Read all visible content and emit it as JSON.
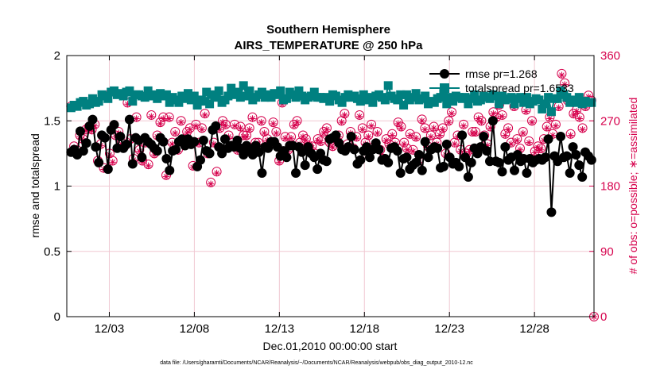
{
  "colors": {
    "rmse": "#000000",
    "spread": "#008080",
    "obs": "#d6004c",
    "grid": "#f0c8d2",
    "axis": "#000000"
  },
  "chart_data": {
    "type": "line",
    "title_line1": "Southern Hemisphere",
    "title_line2": "AIRS_TEMPERATURE @ 250 hPa",
    "xlabel": "Dec.01,2010 00:00:00 start",
    "ylabel_left": "rmse and totalspread",
    "ylabel_right": "# of obs: o=possible; ∗=assimilated",
    "xlim": [
      0,
      31
    ],
    "ylim_left": [
      0,
      2
    ],
    "ylim_right": [
      0,
      360
    ],
    "x_ticks": [
      {
        "value": 2.5,
        "label": "12/03"
      },
      {
        "value": 7.5,
        "label": "12/08"
      },
      {
        "value": 12.5,
        "label": "12/13"
      },
      {
        "value": 17.5,
        "label": "12/18"
      },
      {
        "value": 22.5,
        "label": "12/23"
      },
      {
        "value": 27.5,
        "label": "12/28"
      }
    ],
    "y_left_ticks": [
      {
        "value": 0,
        "label": "0"
      },
      {
        "value": 0.5,
        "label": "0.5"
      },
      {
        "value": 1,
        "label": "1"
      },
      {
        "value": 1.5,
        "label": "1.5"
      },
      {
        "value": 2,
        "label": "2"
      }
    ],
    "y_right_ticks": [
      {
        "value": 0,
        "label": "0"
      },
      {
        "value": 90,
        "label": "90"
      },
      {
        "value": 180,
        "label": "180"
      },
      {
        "value": 270,
        "label": "270"
      },
      {
        "value": 360,
        "label": "360"
      }
    ],
    "legend": [
      {
        "name": "rmse pr=1.268",
        "series": "rmse"
      },
      {
        "name": "totalspread pr=1.6533",
        "series": "spread"
      }
    ],
    "legend_position": "top-right",
    "series": [
      {
        "name": "rmse",
        "axis": "left",
        "marker": "circle",
        "values": [
          1.26,
          1.28,
          1.24,
          1.42,
          1.27,
          1.33,
          1.46,
          1.51,
          1.3,
          1.18,
          1.39,
          1.37,
          1.13,
          1.43,
          1.47,
          1.29,
          1.38,
          1.29,
          1.32,
          1.51,
          1.17,
          1.37,
          1.35,
          1.22,
          1.37,
          1.34,
          1.32,
          1.29,
          1.27,
          1.37,
          1.34,
          1.21,
          1.12,
          1.27,
          1.28,
          1.34,
          1.36,
          1.31,
          1.36,
          1.32,
          1.34,
          1.15,
          1.2,
          1.35,
          1.27,
          1.25,
          1.43,
          1.46,
          1.3,
          1.25,
          1.36,
          1.29,
          1.31,
          1.3,
          1.35,
          1.29,
          1.24,
          1.31,
          1.28,
          1.24,
          1.31,
          1.26,
          1.1,
          1.3,
          1.29,
          1.34,
          1.34,
          1.3,
          1.23,
          1.27,
          1.22,
          1.31,
          1.31,
          1.1,
          1.3,
          1.26,
          1.16,
          1.3,
          1.25,
          1.22,
          1.13,
          1.25,
          1.2,
          1.19,
          1.36,
          1.37,
          1.39,
          1.33,
          1.28,
          1.27,
          1.3,
          1.38,
          1.28,
          1.17,
          1.2,
          1.27,
          1.3,
          1.22,
          1.28,
          1.33,
          1.28,
          1.2,
          1.21,
          1.18,
          1.29,
          1.3,
          1.27,
          1.1,
          1.21,
          1.22,
          1.13,
          1.16,
          1.18,
          1.24,
          1.12,
          1.34,
          1.22,
          1.28,
          1.3,
          1.29,
          1.14,
          1.15,
          1.32,
          1.22,
          1.17,
          1.18,
          1.15,
          1.39,
          1.22,
          1.07,
          1.18,
          1.29,
          1.25,
          1.3,
          1.38,
          1.27,
          1.19,
          1.5,
          1.19,
          1.18,
          1.11,
          1.3,
          1.2,
          1.22,
          1.12,
          1.24,
          1.19,
          1.21,
          1.1,
          1.21,
          1.18,
          1.2,
          1.21,
          1.2,
          1.22,
          1.36,
          0.8,
          1.23,
          1.19,
          1.38,
          1.22,
          1.23,
          1.1,
          1.3,
          1.24,
          1.16,
          1.07,
          1.26,
          1.23,
          1.2
        ]
      },
      {
        "name": "totalspread",
        "axis": "left",
        "marker": "square",
        "values": [
          1.6,
          1.62,
          1.61,
          1.64,
          1.65,
          1.62,
          1.63,
          1.67,
          1.64,
          1.65,
          1.7,
          1.69,
          1.67,
          1.72,
          1.73,
          1.7,
          1.71,
          1.69,
          1.72,
          1.73,
          1.65,
          1.7,
          1.7,
          1.69,
          1.68,
          1.73,
          1.69,
          1.7,
          1.67,
          1.71,
          1.69,
          1.7,
          1.64,
          1.68,
          1.66,
          1.64,
          1.69,
          1.67,
          1.71,
          1.66,
          1.69,
          1.62,
          1.66,
          1.65,
          1.72,
          1.63,
          1.7,
          1.68,
          1.73,
          1.64,
          1.66,
          1.69,
          1.75,
          1.7,
          1.72,
          1.68,
          1.77,
          1.69,
          1.73,
          1.66,
          1.68,
          1.7,
          1.72,
          1.68,
          1.7,
          1.68,
          1.71,
          1.7,
          1.73,
          1.66,
          1.67,
          1.72,
          1.7,
          1.68,
          1.73,
          1.69,
          1.66,
          1.68,
          1.69,
          1.72,
          1.68,
          1.68,
          1.67,
          1.68,
          1.65,
          1.7,
          1.69,
          1.66,
          1.64,
          1.68,
          1.7,
          1.68,
          1.69,
          1.67,
          1.65,
          1.7,
          1.66,
          1.68,
          1.64,
          1.69,
          1.7,
          1.68,
          1.66,
          1.77,
          1.69,
          1.67,
          1.66,
          1.7,
          1.62,
          1.7,
          1.66,
          1.68,
          1.71,
          1.66,
          1.67,
          1.69,
          1.63,
          1.65,
          1.64,
          1.67,
          1.68,
          1.71,
          1.63,
          1.68,
          1.65,
          1.69,
          1.68,
          1.67,
          1.68,
          1.63,
          1.67,
          1.7,
          1.65,
          1.66,
          1.69,
          1.68,
          1.67,
          1.7,
          1.69,
          1.63,
          1.69,
          1.66,
          1.67,
          1.68,
          1.63,
          1.67,
          1.68,
          1.64,
          1.68,
          1.63,
          1.65,
          1.67,
          1.66,
          1.59,
          1.63,
          1.68,
          1.57,
          1.67,
          1.67,
          1.73,
          1.7,
          1.68,
          1.64,
          1.66,
          1.64,
          1.68,
          1.63,
          1.65,
          1.64,
          1.64
        ]
      },
      {
        "name": "obs possible",
        "axis": "right",
        "marker": "circle-open",
        "values": [
          290,
          235,
          230,
          250,
          245,
          258,
          262,
          258,
          265,
          215,
          238,
          205,
          305,
          225,
          215,
          250,
          255,
          240,
          235,
          295,
          245,
          218,
          275,
          230,
          215,
          240,
          210,
          278,
          225,
          250,
          268,
          275,
          195,
          275,
          240,
          255,
          230,
          270,
          245,
          255,
          260,
          208,
          265,
          240,
          260,
          280,
          225,
          185,
          240,
          200,
          260,
          270,
          265,
          250,
          240,
          265,
          230,
          262,
          250,
          250,
          260,
          275,
          240,
          240,
          270,
          255,
          245,
          240,
          268,
          255,
          215,
          295,
          248,
          230,
          248,
          265,
          270,
          240,
          250,
          245,
          235,
          235,
          225,
          245,
          242,
          255,
          260,
          240,
          235,
          245,
          250,
          270,
          280,
          238,
          255,
          232,
          248,
          278,
          260,
          240,
          250,
          265,
          235,
          255,
          230,
          218,
          245,
          238,
          252,
          240,
          268,
          262,
          240,
          232,
          252,
          230,
          248,
          215,
          272,
          260,
          235,
          250,
          262,
          240,
          252,
          260,
          225,
          270,
          282,
          240,
          250,
          230,
          265,
          225,
          230,
          255,
          255,
          275,
          270,
          250,
          238,
          262,
          282,
          275,
          292,
          278,
          252,
          260,
          240,
          290,
          245,
          232,
          255,
          285,
          242,
          270,
          228,
          235,
          232,
          245,
          262,
          275,
          252,
          265,
          290,
          335,
          322,
          298,
          252,
          280,
          285,
          275,
          260,
          290,
          305,
          298
        ]
      },
      {
        "name": "obs assimilated",
        "axis": "right",
        "marker": "asterisk",
        "values": [
          288,
          233,
          228,
          248,
          243,
          256,
          260,
          256,
          263,
          213,
          236,
          203,
          303,
          223,
          213,
          248,
          253,
          238,
          233,
          293,
          243,
          216,
          273,
          228,
          213,
          238,
          208,
          276,
          223,
          248,
          266,
          273,
          193,
          273,
          238,
          253,
          228,
          268,
          243,
          253,
          258,
          206,
          263,
          238,
          258,
          278,
          223,
          183,
          238,
          198,
          258,
          268,
          263,
          248,
          238,
          263,
          228,
          260,
          248,
          248,
          258,
          273,
          238,
          238,
          268,
          253,
          243,
          238,
          266,
          253,
          213,
          293,
          246,
          228,
          246,
          263,
          268,
          238,
          248,
          243,
          233,
          233,
          223,
          243,
          240,
          253,
          258,
          238,
          233,
          243,
          248,
          268,
          278,
          236,
          253,
          230,
          246,
          276,
          258,
          238,
          248,
          263,
          233,
          253,
          228,
          216,
          243,
          236,
          250,
          238,
          266,
          260,
          238,
          230,
          250,
          228,
          246,
          213,
          270,
          258,
          233,
          248,
          260,
          238,
          250,
          258,
          223,
          268,
          280,
          238,
          248,
          228,
          263,
          223,
          228,
          253,
          253,
          273,
          268,
          248,
          236,
          260,
          280,
          273,
          290,
          276,
          250,
          258,
          238,
          288,
          243,
          230,
          253,
          283,
          240,
          268,
          226,
          233,
          230,
          243,
          260,
          273,
          250,
          263,
          288,
          333,
          320,
          296,
          250,
          278,
          283,
          273,
          258,
          288,
          303,
          296
        ]
      }
    ],
    "last_obs": {
      "value": 0,
      "day": 31
    }
  },
  "footnote": "data file: /Users/gharamti/Documents/NCAR/Reanalysis/~/Documents/NCAR/Reanalysis/webpub/obs_diag_output_2010-12.nc"
}
